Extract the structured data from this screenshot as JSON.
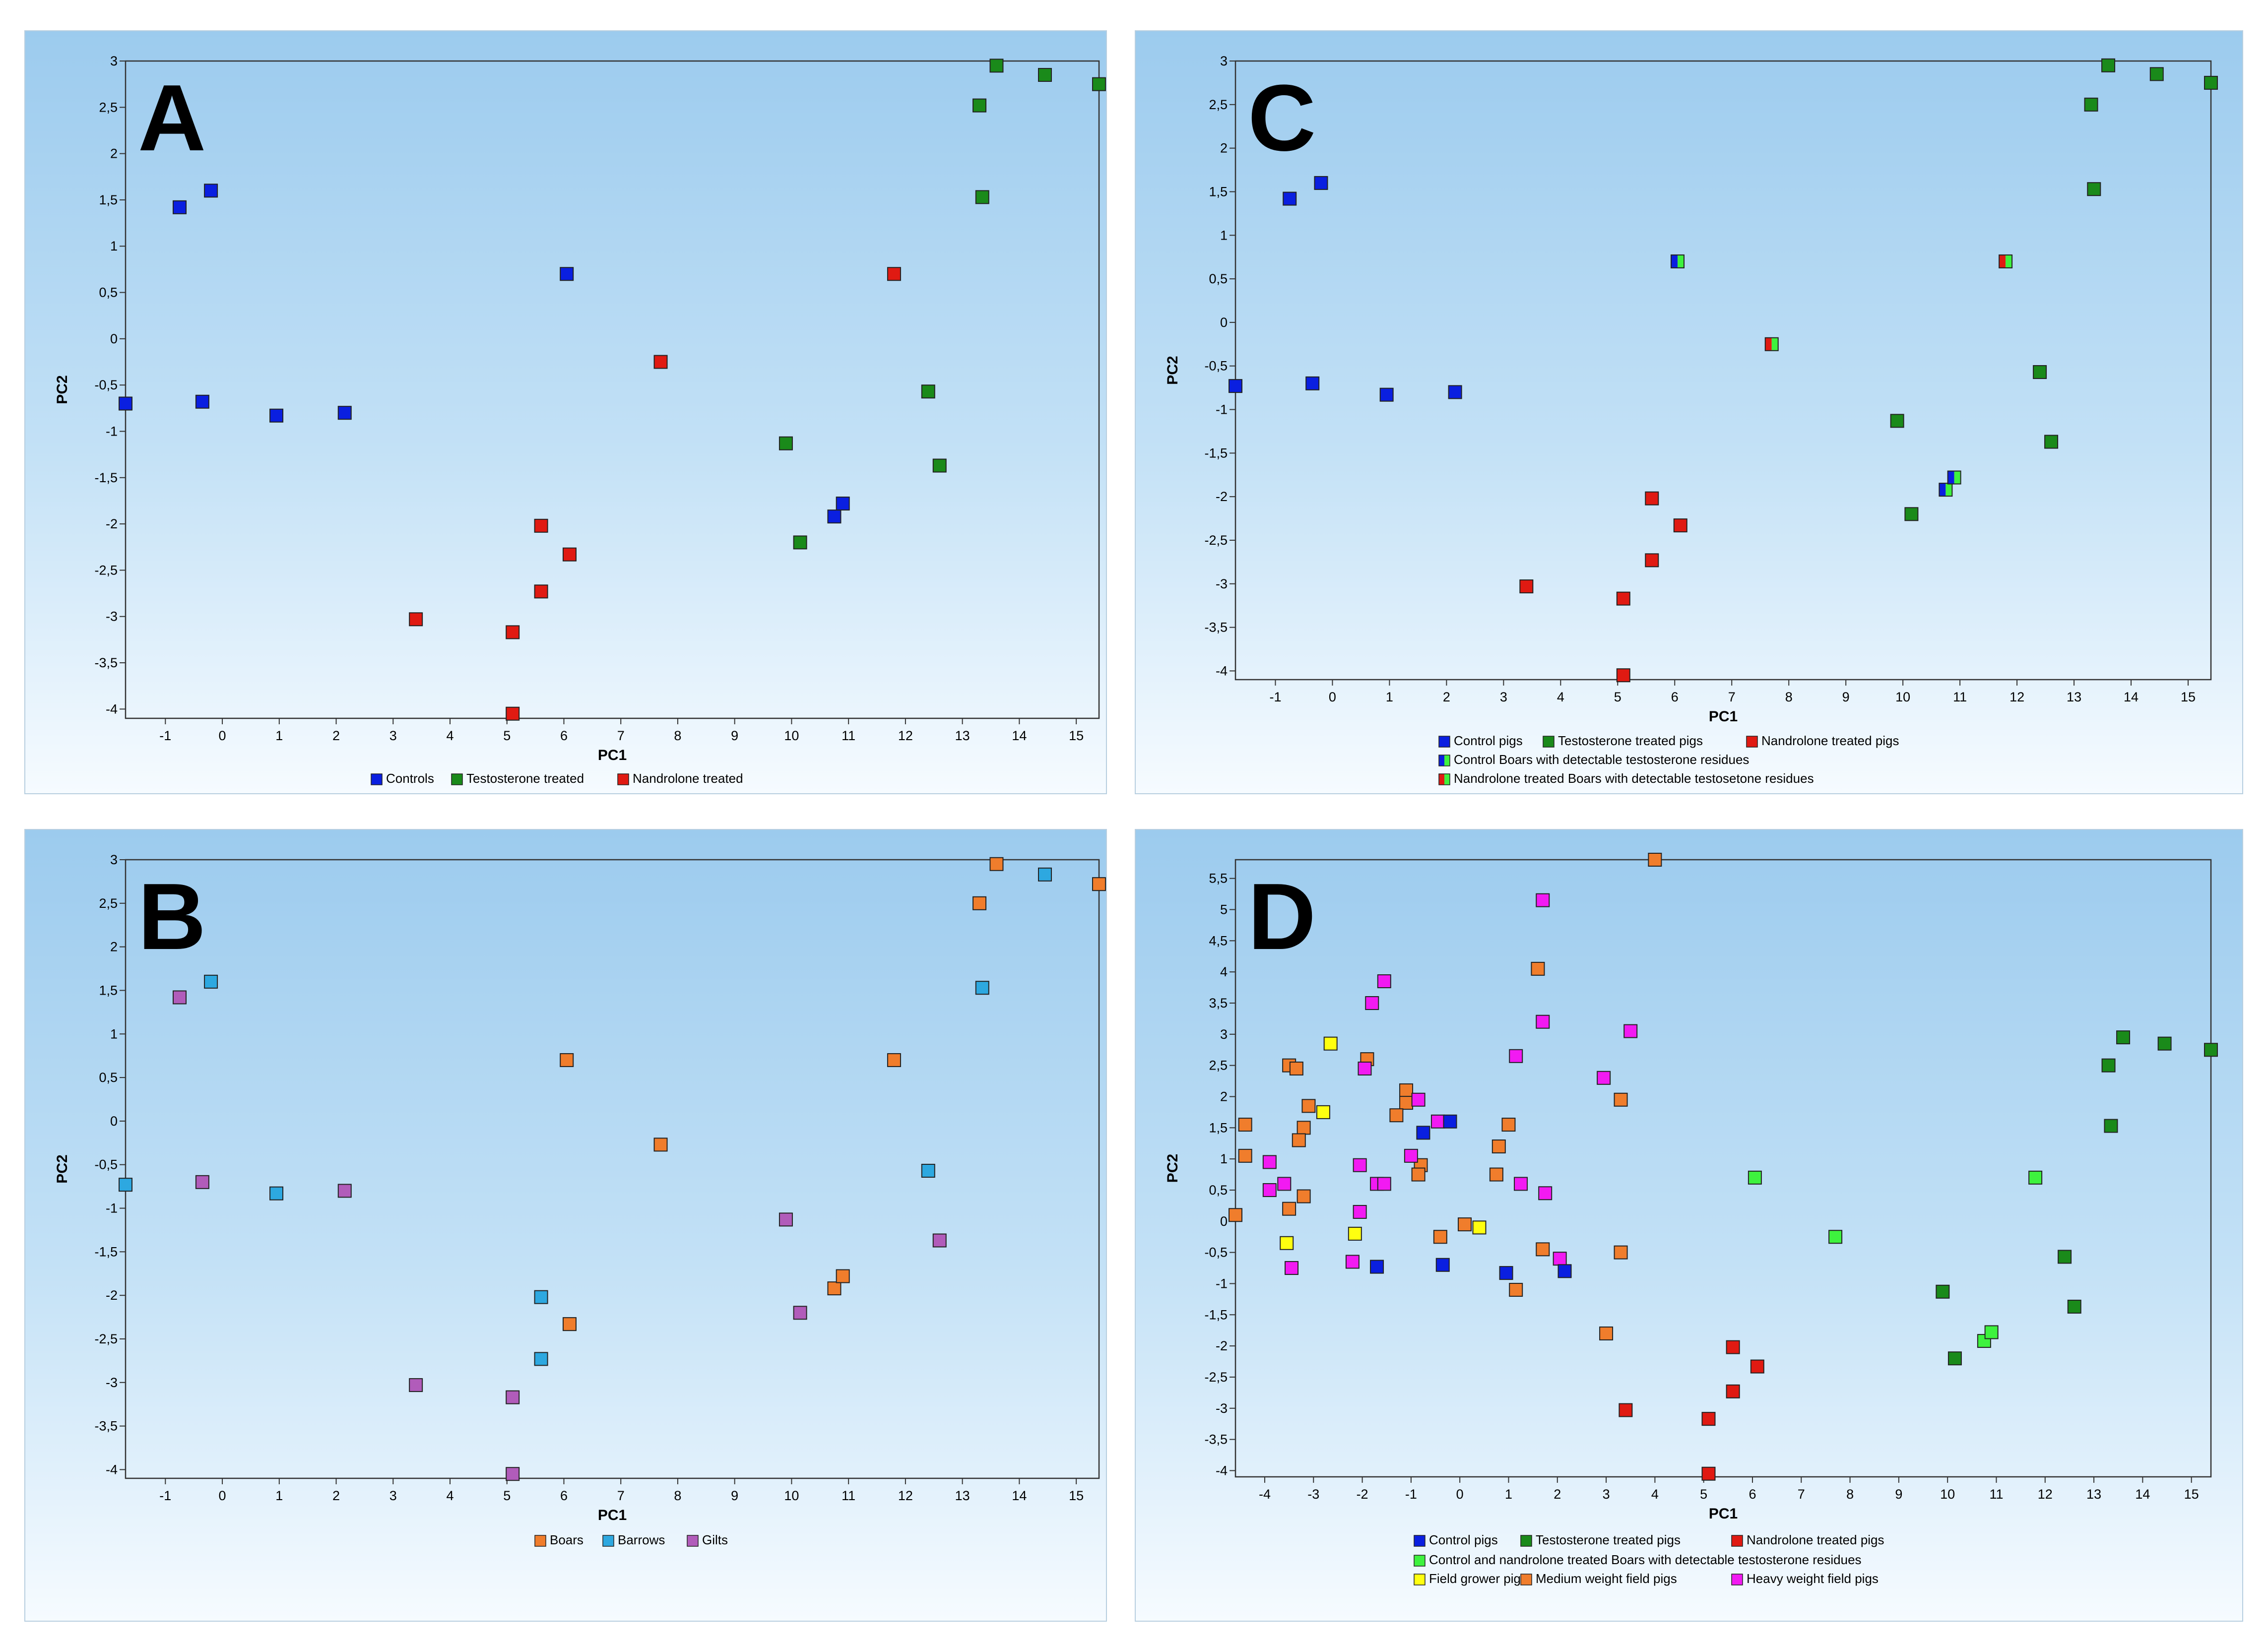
{
  "figure": {
    "title": ""
  },
  "colors": {
    "blue": "#0a1fe0",
    "dkgreen": "#1a8a1a",
    "red": "#e01a12",
    "orange": "#f07d2c",
    "cyan": "#2da8e0",
    "purple": "#b15cba",
    "ltgreen": "#3ef23e",
    "yellow": "#ffff10",
    "magenta": "#f21af2"
  },
  "chart_data": [
    {
      "panel": "A",
      "type": "scatter",
      "xlabel": "PC1",
      "ylabel": "PC2",
      "xlim": [
        -1.7,
        15.4
      ],
      "ylim": [
        -4.1,
        3
      ],
      "xticks": [
        "-1",
        "0",
        "1",
        "2",
        "3",
        "4",
        "5",
        "6",
        "7",
        "8",
        "9",
        "10",
        "11",
        "12",
        "13",
        "14",
        "15"
      ],
      "yticks": [
        "3",
        "2,5",
        "2",
        "1,5",
        "1",
        "0,5",
        "0",
        "-0,5",
        "-1",
        "-1,5",
        "-2",
        "-2,5",
        "-3",
        "-3,5",
        "-4"
      ],
      "legend": [
        [
          {
            "label": "Controls",
            "color": "blue"
          },
          {
            "label": "Testosterone treated",
            "color": "dkgreen"
          },
          {
            "label": "Nandrolone treated",
            "color": "red"
          }
        ]
      ],
      "series": [
        {
          "name": "Controls",
          "color": "blue",
          "points": [
            [
              -1.7,
              -0.7
            ],
            [
              -0.75,
              1.42
            ],
            [
              -0.2,
              1.6
            ],
            [
              -0.35,
              -0.68
            ],
            [
              0.95,
              -0.83
            ],
            [
              2.15,
              -0.8
            ],
            [
              6.05,
              0.7
            ],
            [
              10.75,
              -1.92
            ],
            [
              10.9,
              -1.78
            ]
          ]
        },
        {
          "name": "Testosterone treated",
          "color": "dkgreen",
          "points": [
            [
              13.3,
              2.52
            ],
            [
              13.6,
              2.95
            ],
            [
              14.45,
              2.85
            ],
            [
              15.4,
              2.75
            ],
            [
              13.35,
              1.53
            ],
            [
              12.4,
              -0.57
            ],
            [
              12.6,
              -1.37
            ],
            [
              9.9,
              -1.13
            ],
            [
              10.15,
              -2.2
            ]
          ]
        },
        {
          "name": "Nandrolone treated",
          "color": "red",
          "points": [
            [
              11.8,
              0.7
            ],
            [
              7.7,
              -0.25
            ],
            [
              5.6,
              -2.02
            ],
            [
              6.1,
              -2.33
            ],
            [
              5.6,
              -2.73
            ],
            [
              5.1,
              -3.17
            ],
            [
              3.4,
              -3.03
            ],
            [
              5.1,
              -4.05
            ]
          ]
        }
      ]
    },
    {
      "panel": "B",
      "type": "scatter",
      "xlabel": "PC1",
      "ylabel": "PC2",
      "xlim": [
        -1.7,
        15.4
      ],
      "ylim": [
        -4.1,
        3
      ],
      "xticks": [
        "-1",
        "0",
        "1",
        "2",
        "3",
        "4",
        "5",
        "6",
        "7",
        "8",
        "9",
        "10",
        "11",
        "12",
        "13",
        "14",
        "15"
      ],
      "yticks": [
        "3",
        "2,5",
        "2",
        "1,5",
        "1",
        "0,5",
        "0",
        "-0,5",
        "-1",
        "-1,5",
        "-2",
        "-2,5",
        "-3",
        "-3,5",
        "-4"
      ],
      "legend": [
        [
          {
            "label": "Boars",
            "color": "orange"
          },
          {
            "label": "Barrows",
            "color": "cyan"
          },
          {
            "label": "Gilts",
            "color": "purple"
          }
        ]
      ],
      "series": [
        {
          "name": "Boars",
          "color": "orange",
          "points": [
            [
              13.3,
              2.5
            ],
            [
              13.6,
              2.95
            ],
            [
              15.4,
              2.72
            ],
            [
              6.05,
              0.7
            ],
            [
              11.8,
              0.7
            ],
            [
              7.7,
              -0.27
            ],
            [
              6.1,
              -2.33
            ],
            [
              10.75,
              -1.92
            ],
            [
              10.9,
              -1.78
            ]
          ]
        },
        {
          "name": "Barrows",
          "color": "cyan",
          "points": [
            [
              -1.7,
              -0.73
            ],
            [
              -0.2,
              1.6
            ],
            [
              0.95,
              -0.83
            ],
            [
              14.45,
              2.83
            ],
            [
              13.35,
              1.53
            ],
            [
              12.4,
              -0.57
            ],
            [
              5.6,
              -2.02
            ],
            [
              5.6,
              -2.73
            ]
          ]
        },
        {
          "name": "Gilts",
          "color": "purple",
          "points": [
            [
              -0.75,
              1.42
            ],
            [
              -0.35,
              -0.7
            ],
            [
              2.15,
              -0.8
            ],
            [
              9.9,
              -1.13
            ],
            [
              10.15,
              -2.2
            ],
            [
              12.6,
              -1.37
            ],
            [
              3.4,
              -3.03
            ],
            [
              5.1,
              -3.17
            ],
            [
              5.1,
              -4.05
            ]
          ]
        }
      ]
    },
    {
      "panel": "C",
      "type": "scatter",
      "xlabel": "PC1",
      "ylabel": "PC2",
      "xlim": [
        -1.7,
        15.4
      ],
      "ylim": [
        -4.1,
        3
      ],
      "xticks": [
        "-1",
        "0",
        "1",
        "2",
        "3",
        "4",
        "5",
        "6",
        "7",
        "8",
        "9",
        "10",
        "11",
        "12",
        "13",
        "14",
        "15"
      ],
      "yticks": [
        "3",
        "2,5",
        "2",
        "1,5",
        "1",
        "0,5",
        "0",
        "-0,5",
        "-1",
        "-1,5",
        "-2",
        "-2,5",
        "-3",
        "-3,5",
        "-4"
      ],
      "legend": [
        [
          {
            "label": "Control pigs",
            "color": "blue"
          },
          {
            "label": "Testosterone treated pigs",
            "color": "dkgreen"
          },
          {
            "label": "Nandrolone treated pigs",
            "color": "red"
          }
        ],
        [
          {
            "label": "Control Boars with detectable testosterone residues",
            "color": "blue",
            "color2": "ltgreen"
          }
        ],
        [
          {
            "label": "Nandrolone treated Boars with detectable testosetone residues",
            "color": "red",
            "color2": "ltgreen"
          }
        ]
      ],
      "series": [
        {
          "name": "Control pigs",
          "color": "blue",
          "points": [
            [
              -1.7,
              -0.73
            ],
            [
              -0.75,
              1.42
            ],
            [
              -0.2,
              1.6
            ],
            [
              -0.35,
              -0.7
            ],
            [
              0.95,
              -0.83
            ],
            [
              2.15,
              -0.8
            ]
          ]
        },
        {
          "name": "Testosterone treated pigs",
          "color": "dkgreen",
          "points": [
            [
              13.3,
              2.5
            ],
            [
              13.6,
              2.95
            ],
            [
              14.45,
              2.85
            ],
            [
              15.4,
              2.75
            ],
            [
              13.35,
              1.53
            ],
            [
              12.4,
              -0.57
            ],
            [
              12.6,
              -1.37
            ],
            [
              9.9,
              -1.13
            ],
            [
              10.15,
              -2.2
            ]
          ]
        },
        {
          "name": "Nandrolone treated pigs",
          "color": "red",
          "points": [
            [
              5.6,
              -2.02
            ],
            [
              6.1,
              -2.33
            ],
            [
              5.6,
              -2.73
            ],
            [
              5.1,
              -3.17
            ],
            [
              3.4,
              -3.03
            ],
            [
              5.1,
              -4.05
            ]
          ]
        },
        {
          "name": "Control Boars with detectable testosterone residues",
          "color": "blue",
          "color2": "ltgreen",
          "points": [
            [
              6.05,
              0.7
            ],
            [
              10.75,
              -1.92
            ],
            [
              10.9,
              -1.78
            ]
          ]
        },
        {
          "name": "Nandrolone treated Boars with detectable testosetone residues",
          "color": "red",
          "color2": "ltgreen",
          "points": [
            [
              11.8,
              0.7
            ],
            [
              7.7,
              -0.25
            ]
          ]
        }
      ]
    },
    {
      "panel": "D",
      "type": "scatter",
      "xlabel": "PC1",
      "ylabel": "PC2",
      "xlim": [
        -4.6,
        15.4
      ],
      "ylim": [
        -4.1,
        5.8
      ],
      "xticks": [
        "-4",
        "-3",
        "-2",
        "-1",
        "0",
        "1",
        "2",
        "3",
        "4",
        "5",
        "6",
        "7",
        "8",
        "9",
        "10",
        "11",
        "12",
        "13",
        "14",
        "15"
      ],
      "yticks": [
        "5,5",
        "5",
        "4,5",
        "4",
        "3,5",
        "3",
        "2,5",
        "2",
        "1,5",
        "1",
        "0,5",
        "0",
        "-0,5",
        "-1",
        "-1,5",
        "-2",
        "-2,5",
        "-3",
        "-3,5",
        "-4"
      ],
      "legend": [
        [
          {
            "label": "Control pigs",
            "color": "blue"
          },
          {
            "label": "Testosterone treated pigs",
            "color": "dkgreen"
          },
          {
            "label": "Nandrolone treated pigs",
            "color": "red"
          }
        ],
        [
          {
            "label": "Control and nandrolone treated Boars with detectable testosterone residues",
            "color": "ltgreen"
          }
        ],
        [
          {
            "label": "Field grower pigs",
            "color": "yellow"
          },
          {
            "label": "Medium weight field pigs",
            "color": "orange"
          },
          {
            "label": "Heavy weight field pigs",
            "color": "magenta"
          }
        ]
      ],
      "series": [
        {
          "name": "Medium weight field pigs",
          "color": "orange",
          "points": [
            [
              4,
              5.8
            ],
            [
              1.6,
              4.05
            ],
            [
              -4.4,
              1.55
            ],
            [
              -4.4,
              1.05
            ],
            [
              -4.6,
              0.1
            ],
            [
              -3.5,
              2.5
            ],
            [
              -3.35,
              2.45
            ],
            [
              -3.1,
              1.85
            ],
            [
              -3.2,
              1.5
            ],
            [
              -3.3,
              1.3
            ],
            [
              -3.2,
              0.4
            ],
            [
              -3.5,
              0.2
            ],
            [
              -1.9,
              2.6
            ],
            [
              -1.1,
              2.1
            ],
            [
              -1.1,
              1.9
            ],
            [
              -1.3,
              1.7
            ],
            [
              -0.8,
              0.9
            ],
            [
              -0.85,
              0.75
            ],
            [
              -0.4,
              -0.25
            ],
            [
              0.1,
              -0.05
            ],
            [
              1.0,
              1.55
            ],
            [
              0.8,
              1.2
            ],
            [
              0.75,
              0.75
            ],
            [
              1.7,
              -0.45
            ],
            [
              1.15,
              -1.1
            ],
            [
              3.3,
              1.95
            ],
            [
              3.3,
              -0.5
            ],
            [
              3.0,
              -1.8
            ]
          ]
        },
        {
          "name": "Heavy weight field pigs",
          "color": "magenta",
          "points": [
            [
              1.7,
              5.15
            ],
            [
              -1.55,
              3.85
            ],
            [
              -1.8,
              3.5
            ],
            [
              1.7,
              3.2
            ],
            [
              3.5,
              3.05
            ],
            [
              -1.95,
              2.45
            ],
            [
              2.95,
              2.3
            ],
            [
              1.15,
              2.65
            ],
            [
              -3.6,
              0.6
            ],
            [
              -3.9,
              0.95
            ],
            [
              -3.9,
              0.5
            ],
            [
              -3.45,
              -0.75
            ],
            [
              -2.05,
              0.9
            ],
            [
              -2.05,
              0.15
            ],
            [
              -1.7,
              0.6
            ],
            [
              -1.55,
              0.6
            ],
            [
              -2.2,
              -0.65
            ],
            [
              -0.85,
              1.95
            ],
            [
              -1.0,
              1.05
            ],
            [
              -0.45,
              1.6
            ],
            [
              1.25,
              0.6
            ],
            [
              1.75,
              0.45
            ],
            [
              2.05,
              -0.6
            ]
          ]
        },
        {
          "name": "Field grower pigs",
          "color": "yellow",
          "points": [
            [
              -2.65,
              2.85
            ],
            [
              -2.8,
              1.75
            ],
            [
              -3.55,
              -0.35
            ],
            [
              -2.15,
              -0.2
            ],
            [
              0.4,
              -0.1
            ]
          ]
        },
        {
          "name": "Control pigs",
          "color": "blue",
          "points": [
            [
              -1.7,
              -0.73
            ],
            [
              -0.75,
              1.42
            ],
            [
              -0.2,
              1.6
            ],
            [
              -0.35,
              -0.7
            ],
            [
              0.95,
              -0.83
            ],
            [
              2.15,
              -0.8
            ]
          ]
        },
        {
          "name": "Testosterone treated pigs",
          "color": "dkgreen",
          "points": [
            [
              13.3,
              2.5
            ],
            [
              13.6,
              2.95
            ],
            [
              14.45,
              2.85
            ],
            [
              15.4,
              2.75
            ],
            [
              13.35,
              1.53
            ],
            [
              12.4,
              -0.57
            ],
            [
              12.6,
              -1.37
            ],
            [
              9.9,
              -1.13
            ],
            [
              10.15,
              -2.2
            ]
          ]
        },
        {
          "name": "Nandrolone treated pigs",
          "color": "red",
          "points": [
            [
              5.6,
              -2.02
            ],
            [
              6.1,
              -2.33
            ],
            [
              5.6,
              -2.73
            ],
            [
              5.1,
              -3.17
            ],
            [
              3.4,
              -3.03
            ],
            [
              5.1,
              -4.05
            ]
          ]
        },
        {
          "name": "Control and nandrolone treated Boars with detectable testosterone residues",
          "color": "ltgreen",
          "points": [
            [
              6.05,
              0.7
            ],
            [
              11.8,
              0.7
            ],
            [
              7.7,
              -0.25
            ],
            [
              10.75,
              -1.92
            ],
            [
              10.9,
              -1.78
            ]
          ]
        }
      ]
    }
  ]
}
